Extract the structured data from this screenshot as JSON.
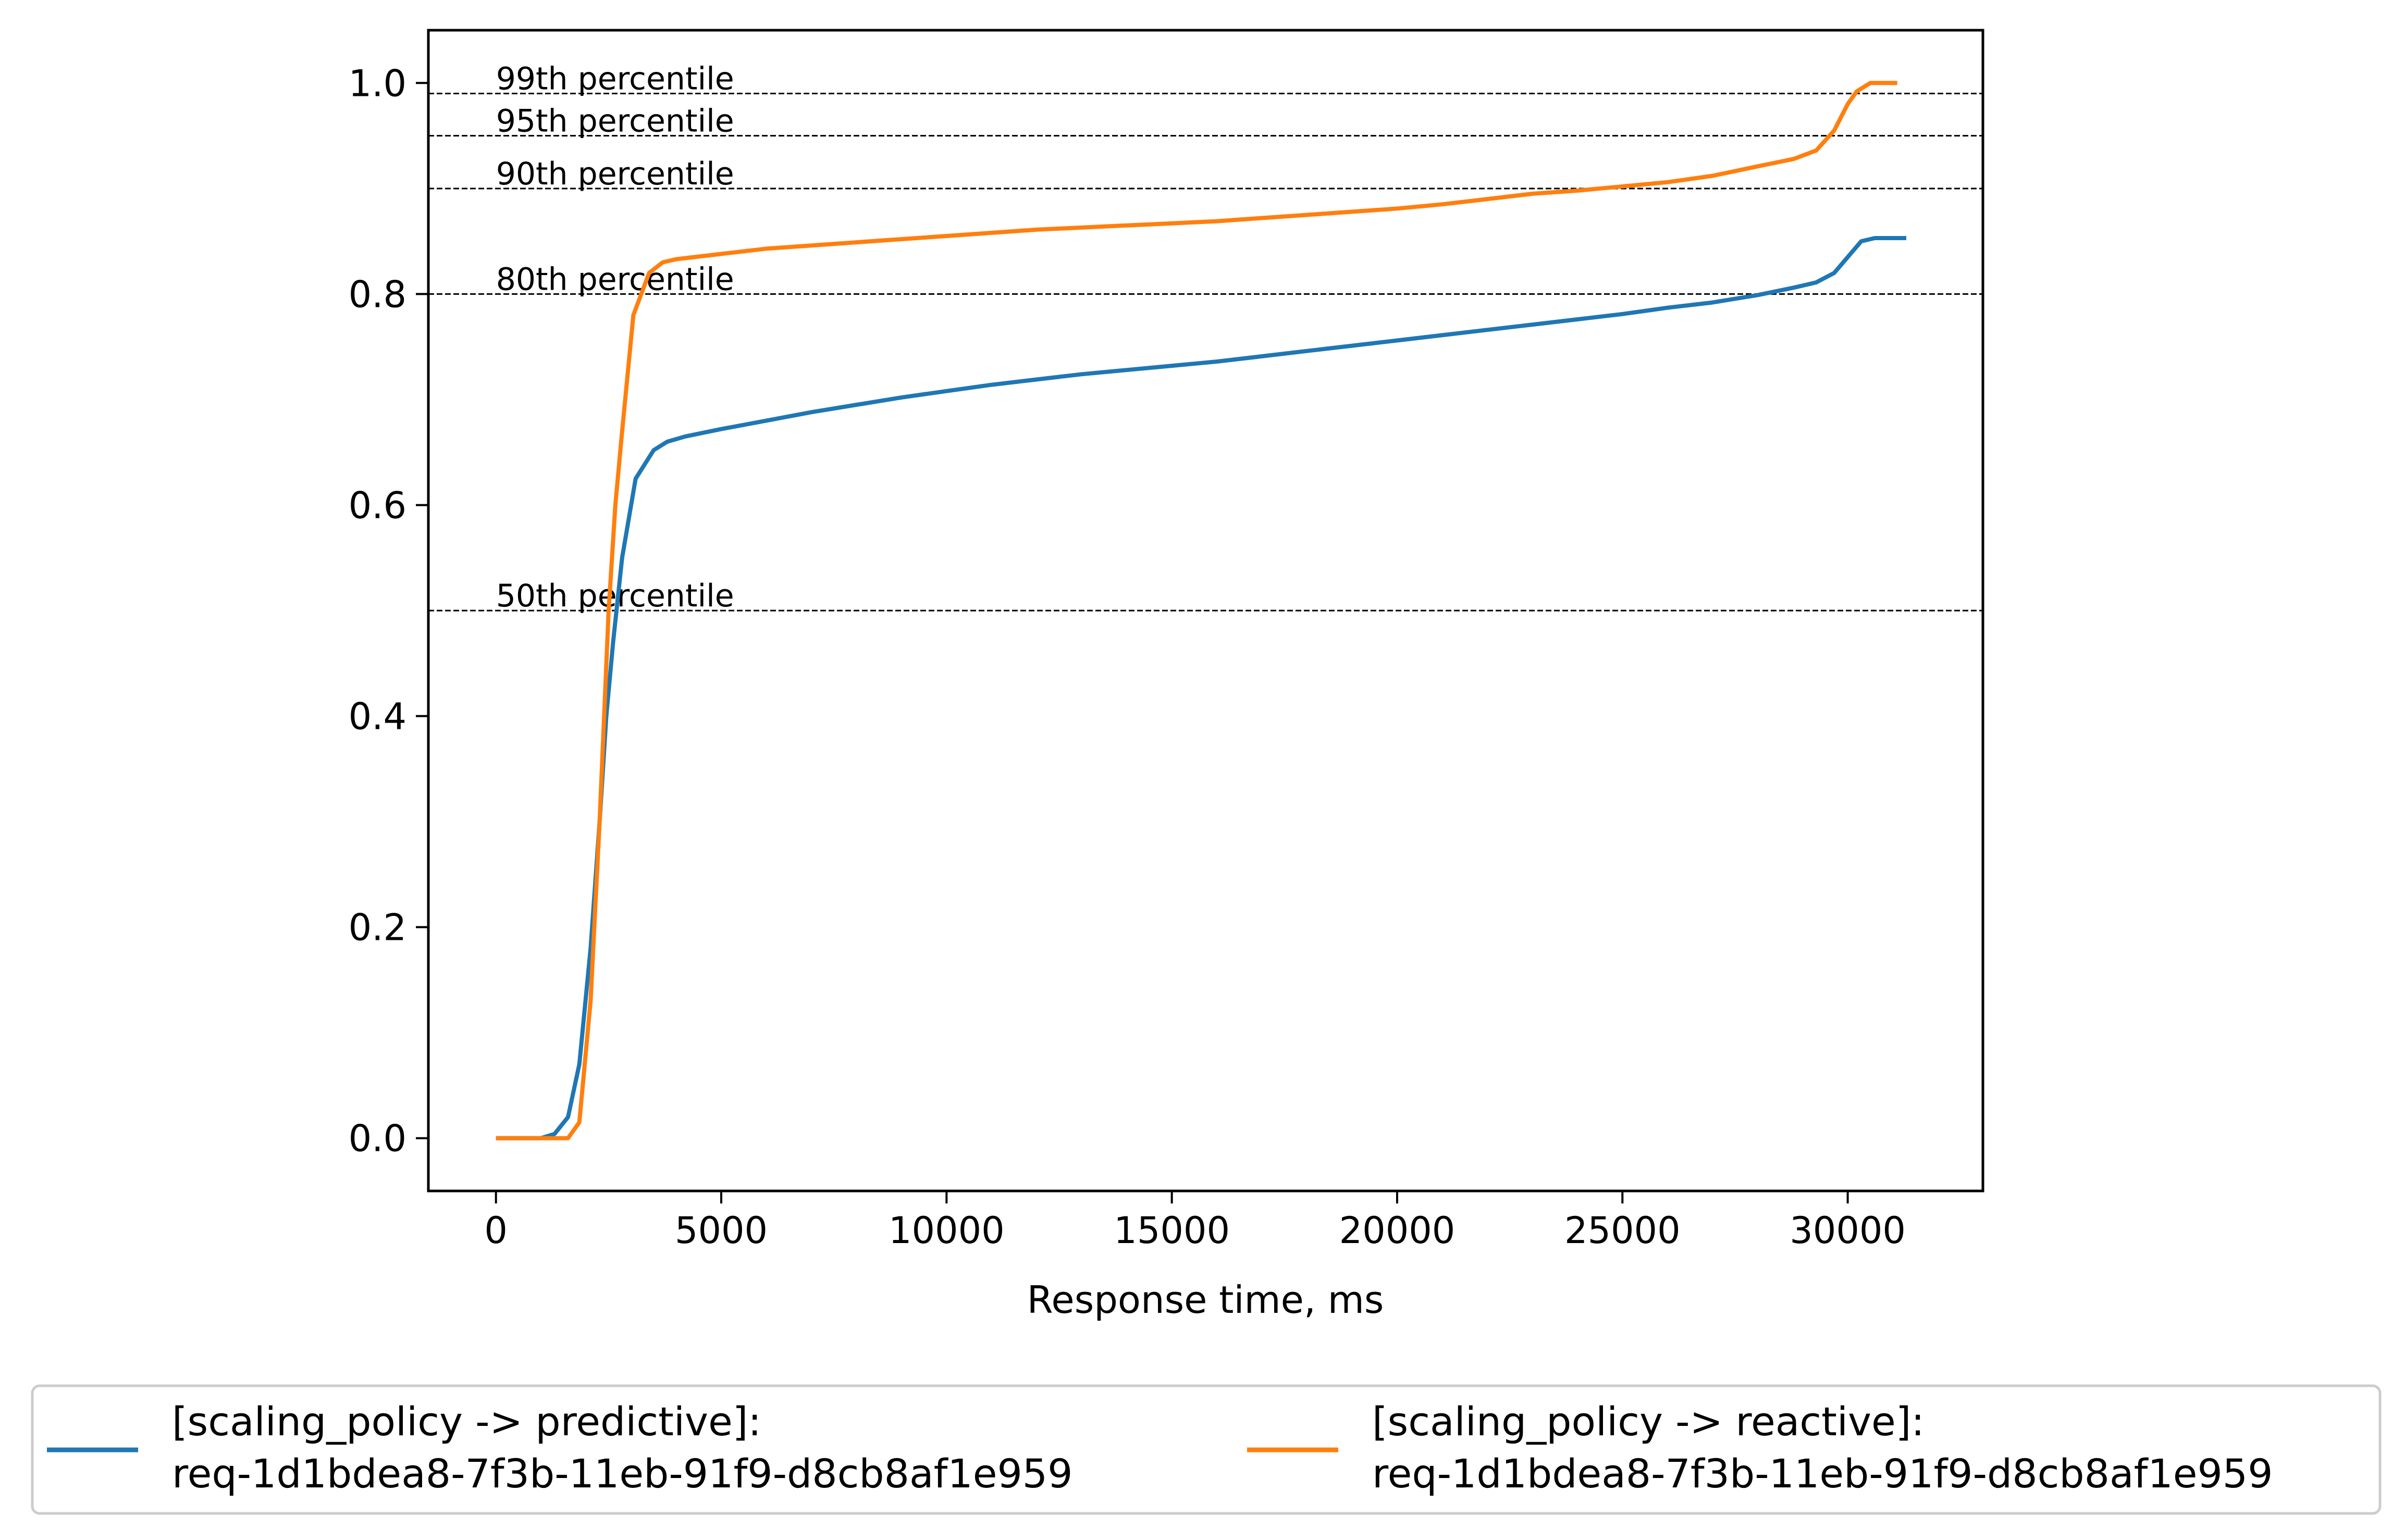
{
  "chart_data": {
    "type": "line",
    "title": "",
    "xlabel": "Response time, ms",
    "ylabel": "",
    "xlim": [
      -1500,
      33000
    ],
    "ylim": [
      -0.05,
      1.05
    ],
    "xticks": [
      0,
      5000,
      10000,
      15000,
      20000,
      25000,
      30000
    ],
    "yticks": [
      0.0,
      0.2,
      0.4,
      0.6,
      0.8,
      1.0
    ],
    "xtick_labels": [
      "0",
      "5000",
      "10000",
      "15000",
      "20000",
      "25000",
      "30000"
    ],
    "ytick_labels": [
      "0.0",
      "0.2",
      "0.4",
      "0.6",
      "0.8",
      "1.0"
    ],
    "grid": false,
    "legend_position": "bottom-center",
    "reference_lines": [
      {
        "y": 0.99,
        "label": "99th percentile"
      },
      {
        "y": 0.95,
        "label": "95th percentile"
      },
      {
        "y": 0.9,
        "label": "90th percentile"
      },
      {
        "y": 0.8,
        "label": "80th percentile"
      },
      {
        "y": 0.5,
        "label": "50th percentile"
      }
    ],
    "series": [
      {
        "name_line1": "[scaling_policy -> predictive]:",
        "name_line2": "req-1d1bdea8-7f3b-11eb-91f9-d8cb8af1e959",
        "color": "#1f77b4",
        "x": [
          0,
          500,
          1000,
          1300,
          1600,
          1850,
          2100,
          2300,
          2450,
          2600,
          2800,
          3100,
          3500,
          3800,
          4200,
          5000,
          6000,
          7000,
          8000,
          9000,
          10000,
          11000,
          12000,
          13000,
          14000,
          15000,
          16000,
          17000,
          18000,
          19000,
          20000,
          21000,
          22000,
          23000,
          24000,
          25000,
          26000,
          27000,
          28000,
          28800,
          29300,
          29700,
          30000,
          30300,
          30600,
          31000,
          31300
        ],
        "y": [
          0.0,
          0.0,
          0.0,
          0.004,
          0.02,
          0.07,
          0.18,
          0.3,
          0.4,
          0.47,
          0.55,
          0.625,
          0.652,
          0.66,
          0.665,
          0.672,
          0.68,
          0.688,
          0.695,
          0.702,
          0.708,
          0.714,
          0.719,
          0.724,
          0.728,
          0.732,
          0.736,
          0.741,
          0.746,
          0.751,
          0.756,
          0.761,
          0.766,
          0.771,
          0.776,
          0.781,
          0.787,
          0.792,
          0.799,
          0.806,
          0.811,
          0.82,
          0.835,
          0.85,
          0.853,
          0.853,
          0.853
        ]
      },
      {
        "name_line1": "[scaling_policy -> reactive]:",
        "name_line2": "req-1d1bdea8-7f3b-11eb-91f9-d8cb8af1e959",
        "color": "#ff7f0e",
        "x": [
          0,
          500,
          1000,
          1600,
          1850,
          2100,
          2300,
          2500,
          2650,
          2800,
          3050,
          3400,
          3700,
          4000,
          5000,
          6000,
          7000,
          8000,
          9000,
          10000,
          11000,
          12000,
          13000,
          14000,
          15000,
          16000,
          17000,
          18000,
          19000,
          20000,
          21000,
          22000,
          23000,
          24000,
          25000,
          26000,
          27000,
          28000,
          28800,
          29300,
          29700,
          30000,
          30200,
          30500,
          31100
        ],
        "y": [
          0.0,
          0.0,
          0.0,
          0.0,
          0.015,
          0.13,
          0.3,
          0.5,
          0.6,
          0.67,
          0.78,
          0.82,
          0.83,
          0.833,
          0.838,
          0.843,
          0.846,
          0.849,
          0.852,
          0.855,
          0.858,
          0.861,
          0.863,
          0.865,
          0.867,
          0.869,
          0.872,
          0.875,
          0.878,
          0.881,
          0.885,
          0.89,
          0.895,
          0.898,
          0.902,
          0.906,
          0.912,
          0.921,
          0.928,
          0.936,
          0.955,
          0.98,
          0.992,
          1.0,
          1.0
        ]
      }
    ]
  }
}
